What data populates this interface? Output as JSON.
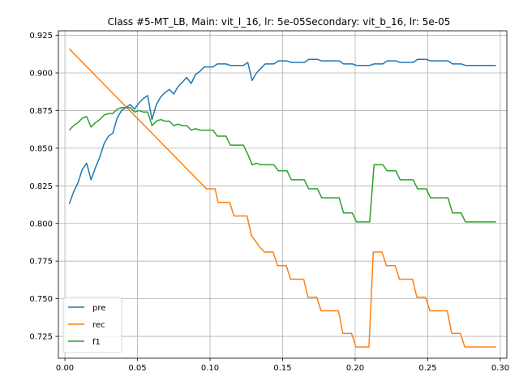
{
  "chart_data": {
    "type": "line",
    "title": "Class #5-MT_LB, Main: vit_l_16, lr: 5e-05Secondary: vit_b_16, lr: 5e-05",
    "xlabel": "",
    "ylabel": "",
    "xlim": [
      -0.0045,
      0.3045
    ],
    "ylim": [
      0.7105,
      0.928
    ],
    "xticks": [
      0.0,
      0.05,
      0.1,
      0.15,
      0.2,
      0.25,
      0.3
    ],
    "xtick_labels": [
      "0.00",
      "0.05",
      "0.10",
      "0.15",
      "0.20",
      "0.25",
      "0.30"
    ],
    "yticks": [
      0.725,
      0.75,
      0.775,
      0.8,
      0.825,
      0.85,
      0.875,
      0.9,
      0.925
    ],
    "ytick_labels": [
      "0.725",
      "0.750",
      "0.775",
      "0.800",
      "0.825",
      "0.850",
      "0.875",
      "0.900",
      "0.925"
    ],
    "grid": true,
    "legend_position": "lower-left",
    "series": [
      {
        "name": "pre",
        "color": "#1f77b4",
        "x": [
          0.003,
          0.006,
          0.009,
          0.012,
          0.015,
          0.018,
          0.021,
          0.024,
          0.027,
          0.03,
          0.033,
          0.036,
          0.039,
          0.042,
          0.045,
          0.048,
          0.051,
          0.054,
          0.057,
          0.06,
          0.063,
          0.066,
          0.069,
          0.072,
          0.075,
          0.078,
          0.081,
          0.084,
          0.087,
          0.09,
          0.093,
          0.096,
          0.099,
          0.102,
          0.105,
          0.108,
          0.111,
          0.114,
          0.117,
          0.12,
          0.123,
          0.126,
          0.129,
          0.132,
          0.135,
          0.138,
          0.141,
          0.144,
          0.147,
          0.15,
          0.153,
          0.156,
          0.159,
          0.162,
          0.165,
          0.168,
          0.171,
          0.174,
          0.177,
          0.18,
          0.183,
          0.186,
          0.189,
          0.192,
          0.195,
          0.198,
          0.201,
          0.204,
          0.207,
          0.21,
          0.213,
          0.216,
          0.219,
          0.222,
          0.225,
          0.228,
          0.231,
          0.234,
          0.237,
          0.24,
          0.243,
          0.246,
          0.249,
          0.252,
          0.255,
          0.258,
          0.261,
          0.264,
          0.267,
          0.27,
          0.273,
          0.276,
          0.279,
          0.282,
          0.285,
          0.288,
          0.291,
          0.294,
          0.297
        ],
        "y": [
          0.813,
          0.821,
          0.827,
          0.836,
          0.84,
          0.829,
          0.837,
          0.844,
          0.853,
          0.858,
          0.86,
          0.87,
          0.875,
          0.877,
          0.879,
          0.876,
          0.88,
          0.883,
          0.885,
          0.869,
          0.879,
          0.884,
          0.887,
          0.889,
          0.886,
          0.891,
          0.894,
          0.897,
          0.893,
          0.899,
          0.901,
          0.904,
          0.904,
          0.904,
          0.906,
          0.906,
          0.906,
          0.905,
          0.905,
          0.905,
          0.905,
          0.907,
          0.895,
          0.9,
          0.903,
          0.906,
          0.906,
          0.906,
          0.908,
          0.908,
          0.908,
          0.907,
          0.907,
          0.907,
          0.907,
          0.909,
          0.909,
          0.909,
          0.908,
          0.908,
          0.908,
          0.908,
          0.908,
          0.906,
          0.906,
          0.906,
          0.905,
          0.905,
          0.905,
          0.905,
          0.906,
          0.906,
          0.906,
          0.908,
          0.908,
          0.908,
          0.907,
          0.907,
          0.907,
          0.907,
          0.909,
          0.909,
          0.909,
          0.908,
          0.908,
          0.908,
          0.908,
          0.908,
          0.906,
          0.906,
          0.906,
          0.905,
          0.905,
          0.905,
          0.905,
          0.905,
          0.905,
          0.905,
          0.905
        ]
      },
      {
        "name": "rec",
        "color": "#ff7f0e",
        "x": [
          0.003,
          0.0975,
          0.1005,
          0.1035,
          0.1055,
          0.1085,
          0.1135,
          0.1165,
          0.1225,
          0.1255,
          0.1285,
          0.1315,
          0.1345,
          0.1375,
          0.1405,
          0.1435,
          0.1465,
          0.1495,
          0.1525,
          0.1555,
          0.1585,
          0.1615,
          0.1645,
          0.1675,
          0.1705,
          0.1735,
          0.1765,
          0.1795,
          0.1825,
          0.1855,
          0.1885,
          0.1915,
          0.1945,
          0.1975,
          0.2005,
          0.2035,
          0.2065,
          0.2095,
          0.2125,
          0.2155,
          0.2185,
          0.2215,
          0.2245,
          0.2275,
          0.2305,
          0.2335,
          0.2365,
          0.2395,
          0.2425,
          0.2455,
          0.2485,
          0.2515,
          0.2545,
          0.2575,
          0.2605,
          0.2635,
          0.2665,
          0.2695,
          0.2725,
          0.2755,
          0.2785,
          0.297
        ],
        "y": [
          0.916,
          0.823,
          0.823,
          0.823,
          0.814,
          0.814,
          0.814,
          0.805,
          0.805,
          0.805,
          0.792,
          0.788,
          0.784,
          0.781,
          0.781,
          0.781,
          0.772,
          0.772,
          0.772,
          0.763,
          0.763,
          0.763,
          0.763,
          0.751,
          0.751,
          0.751,
          0.742,
          0.742,
          0.742,
          0.742,
          0.742,
          0.727,
          0.727,
          0.727,
          0.718,
          0.718,
          0.718,
          0.718,
          0.781,
          0.781,
          0.781,
          0.772,
          0.772,
          0.772,
          0.763,
          0.763,
          0.763,
          0.763,
          0.751,
          0.751,
          0.751,
          0.742,
          0.742,
          0.742,
          0.742,
          0.742,
          0.727,
          0.727,
          0.727,
          0.718,
          0.718,
          0.718
        ]
      },
      {
        "name": "f1",
        "color": "#2ca02c",
        "x": [
          0.003,
          0.006,
          0.009,
          0.012,
          0.015,
          0.018,
          0.021,
          0.024,
          0.027,
          0.03,
          0.033,
          0.036,
          0.039,
          0.042,
          0.045,
          0.048,
          0.051,
          0.054,
          0.057,
          0.06,
          0.063,
          0.066,
          0.069,
          0.072,
          0.075,
          0.078,
          0.081,
          0.084,
          0.087,
          0.09,
          0.093,
          0.096,
          0.099,
          0.102,
          0.105,
          0.108,
          0.111,
          0.114,
          0.117,
          0.12,
          0.123,
          0.126,
          0.129,
          0.132,
          0.135,
          0.138,
          0.141,
          0.144,
          0.147,
          0.15,
          0.153,
          0.156,
          0.159,
          0.162,
          0.165,
          0.168,
          0.171,
          0.174,
          0.177,
          0.18,
          0.183,
          0.186,
          0.189,
          0.192,
          0.195,
          0.198,
          0.201,
          0.204,
          0.207,
          0.21,
          0.213,
          0.216,
          0.219,
          0.222,
          0.225,
          0.228,
          0.231,
          0.234,
          0.237,
          0.24,
          0.243,
          0.246,
          0.249,
          0.252,
          0.255,
          0.258,
          0.261,
          0.264,
          0.267,
          0.27,
          0.273,
          0.276,
          0.279,
          0.282,
          0.285,
          0.288,
          0.291,
          0.294,
          0.297
        ],
        "y": [
          0.862,
          0.865,
          0.867,
          0.87,
          0.871,
          0.864,
          0.867,
          0.869,
          0.872,
          0.873,
          0.873,
          0.876,
          0.877,
          0.877,
          0.877,
          0.874,
          0.875,
          0.874,
          0.874,
          0.865,
          0.868,
          0.869,
          0.868,
          0.868,
          0.865,
          0.866,
          0.865,
          0.865,
          0.862,
          0.863,
          0.862,
          0.862,
          0.862,
          0.862,
          0.858,
          0.858,
          0.858,
          0.852,
          0.852,
          0.852,
          0.852,
          0.846,
          0.839,
          0.84,
          0.839,
          0.839,
          0.839,
          0.839,
          0.835,
          0.835,
          0.835,
          0.829,
          0.829,
          0.829,
          0.829,
          0.823,
          0.823,
          0.823,
          0.817,
          0.817,
          0.817,
          0.817,
          0.817,
          0.807,
          0.807,
          0.807,
          0.801,
          0.801,
          0.801,
          0.801,
          0.839,
          0.839,
          0.839,
          0.835,
          0.835,
          0.835,
          0.829,
          0.829,
          0.829,
          0.829,
          0.823,
          0.823,
          0.823,
          0.817,
          0.817,
          0.817,
          0.817,
          0.817,
          0.807,
          0.807,
          0.807,
          0.801,
          0.801,
          0.801,
          0.801,
          0.801,
          0.801,
          0.801,
          0.801
        ]
      }
    ]
  }
}
